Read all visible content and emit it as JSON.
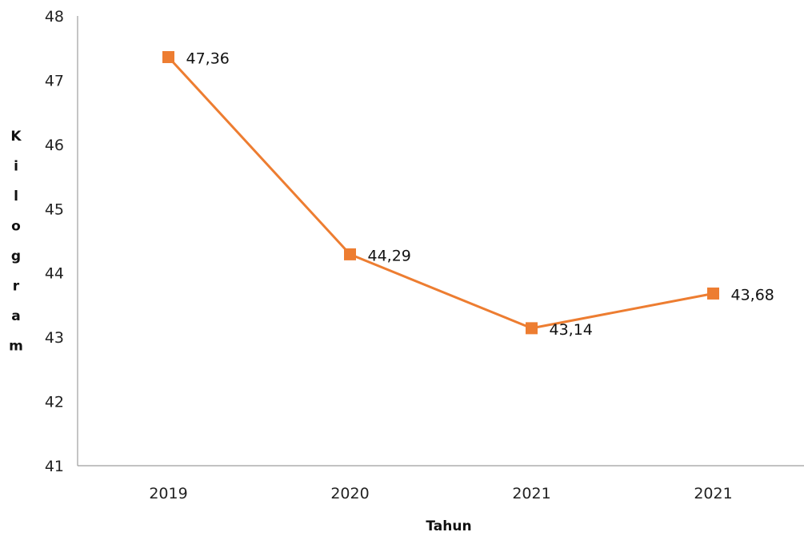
{
  "chart_data": {
    "type": "line",
    "categories": [
      "2019",
      "2020",
      "2021",
      "2021"
    ],
    "series": [
      {
        "values": [
          47.36,
          44.29,
          43.14,
          43.68
        ],
        "data_labels": [
          "47,36",
          "44,29",
          "43,14",
          "43,68"
        ],
        "color": "#ED7D31",
        "marker": "square"
      }
    ],
    "title": "",
    "xlabel": "Tahun",
    "ylabel": "Kilogram",
    "ylim": [
      41,
      48
    ],
    "yticks": [
      "41",
      "42",
      "43",
      "44",
      "45",
      "46",
      "47",
      "48"
    ],
    "grid": false,
    "legend": "none",
    "axis_color": "#9E9E9E"
  }
}
